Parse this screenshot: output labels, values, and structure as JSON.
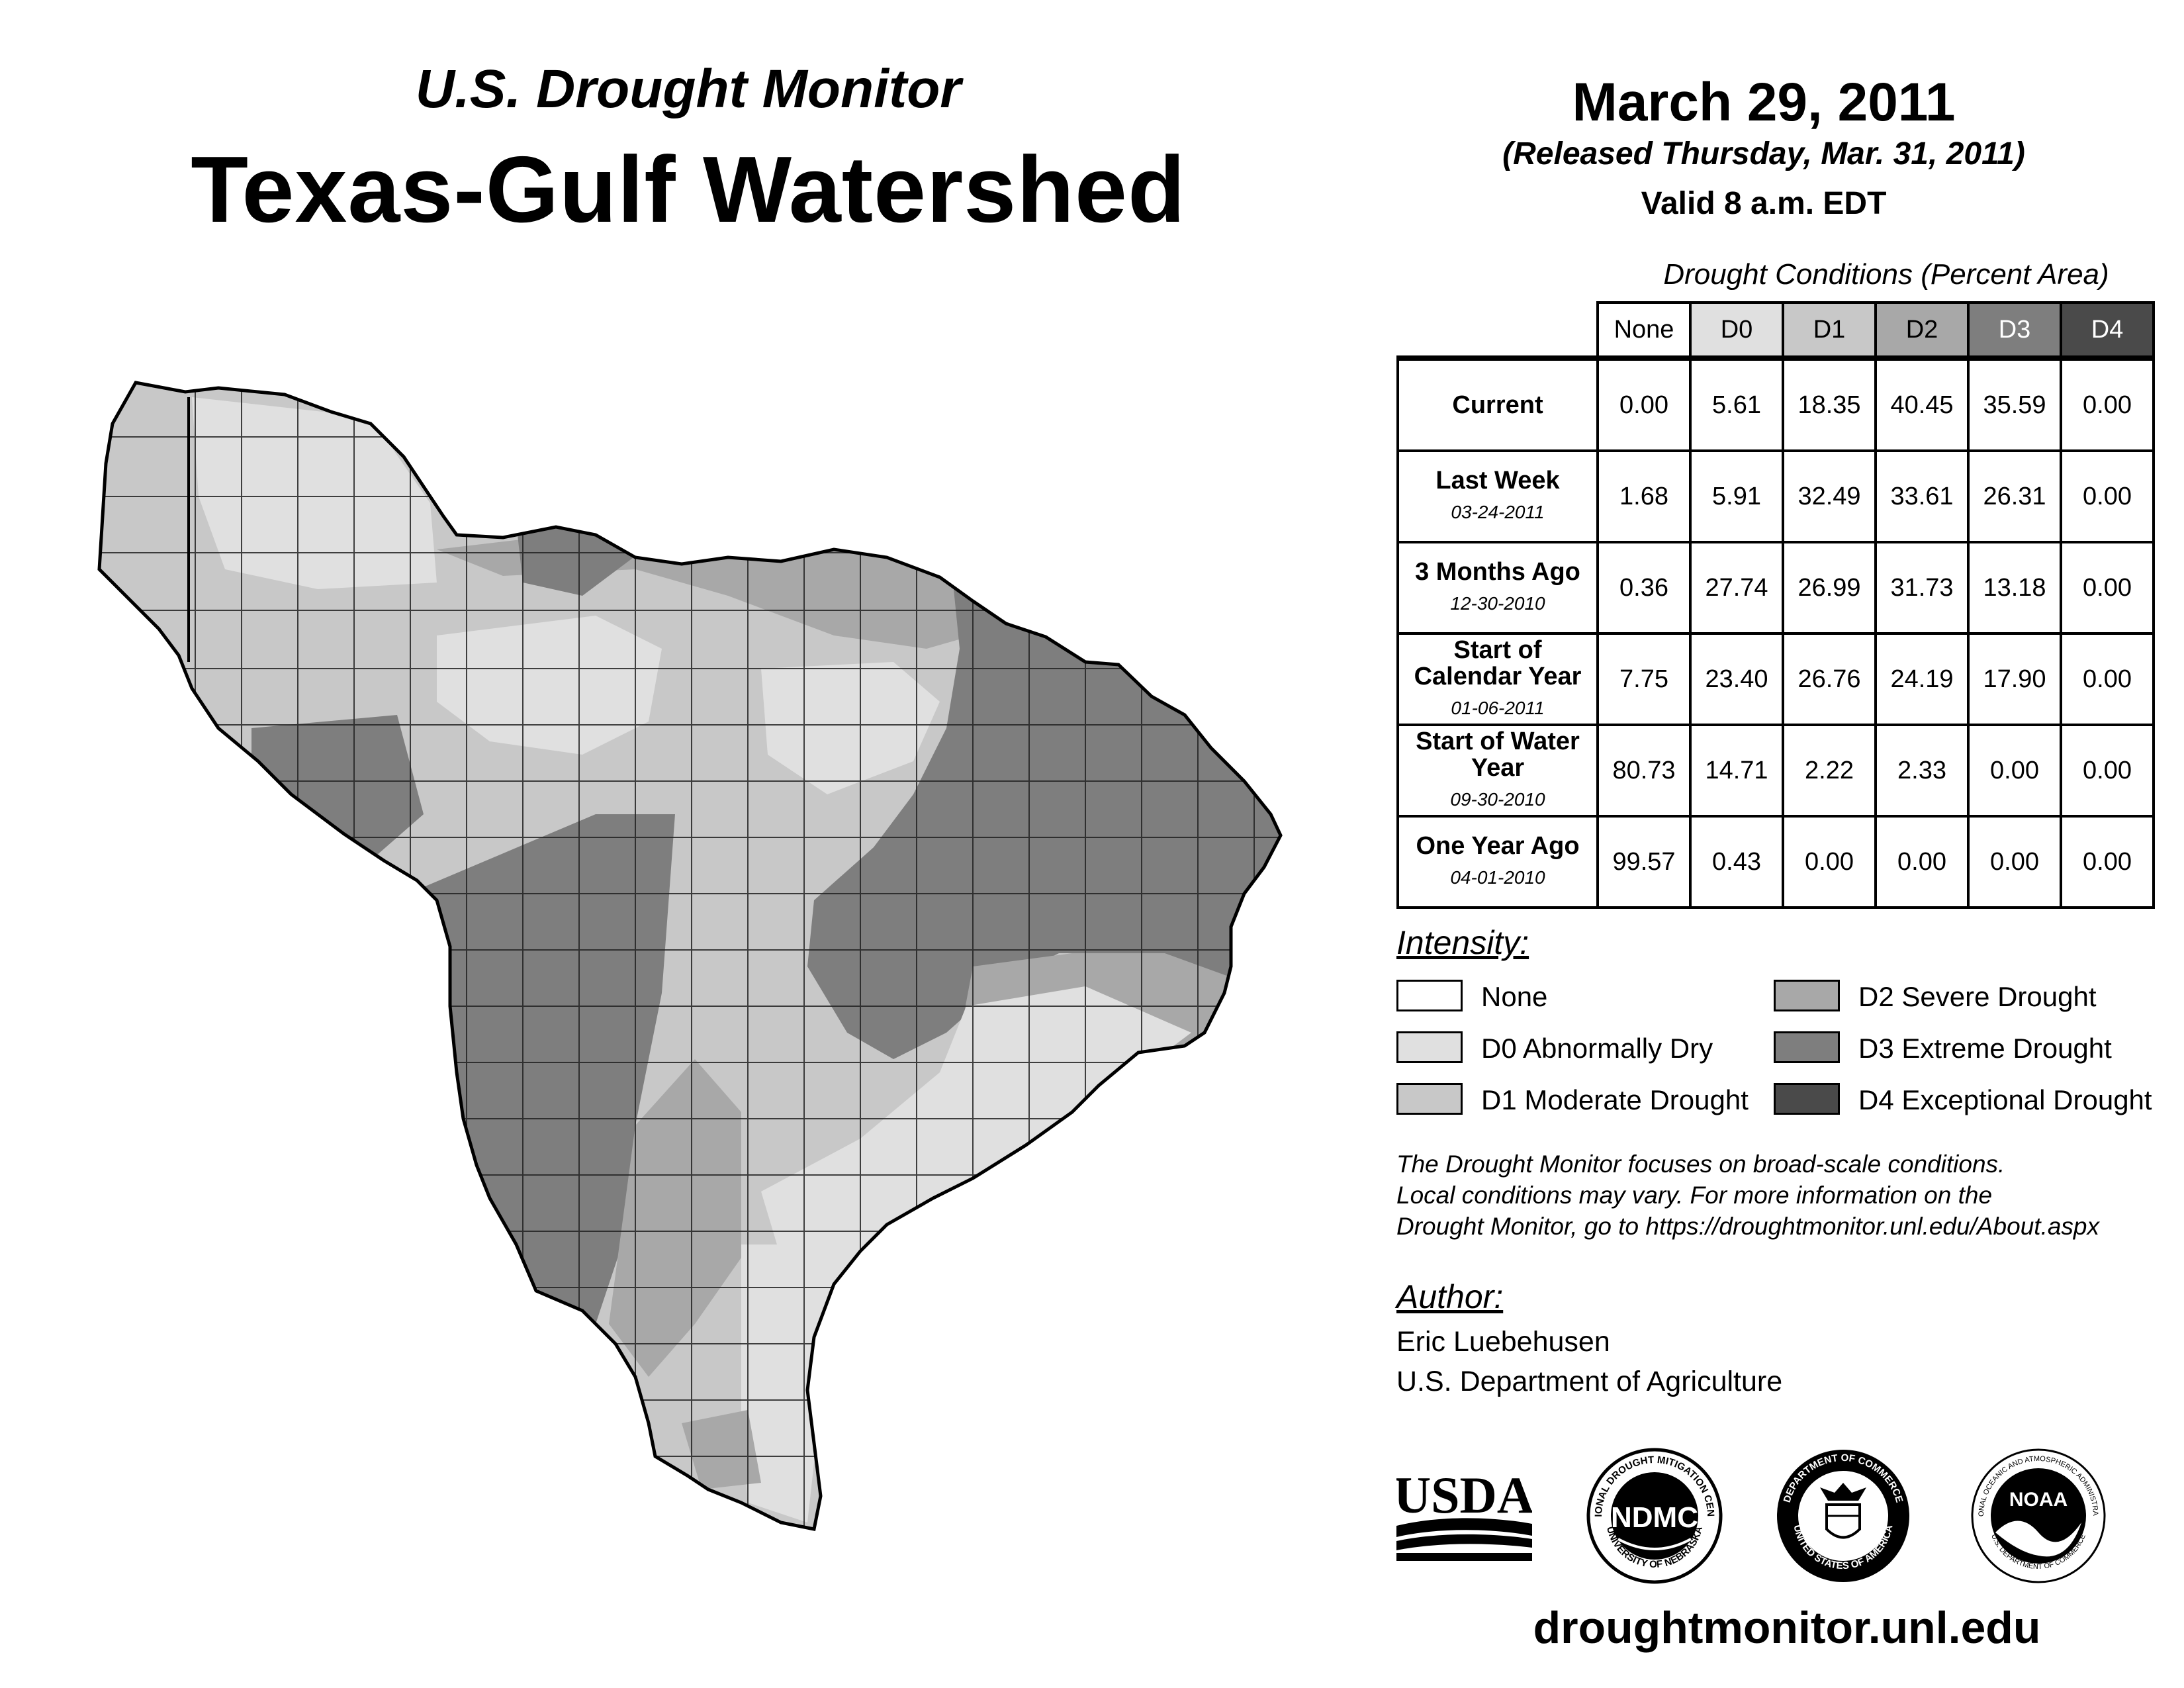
{
  "header": {
    "subtitle": "U.S. Drought Monitor",
    "title": "Texas-Gulf Watershed",
    "date": "March 29, 2011",
    "released": "(Released Thursday, Mar. 31, 2011)",
    "valid": "Valid 8 a.m. EDT"
  },
  "table": {
    "caption": "Drought Conditions (Percent Area)",
    "columns": [
      "None",
      "D0",
      "D1",
      "D2",
      "D3",
      "D4"
    ],
    "column_colors": [
      "#ffffff",
      "#e0e0e0",
      "#c8c8c8",
      "#a8a8a8",
      "#7e7e7e",
      "#4a4a4a"
    ],
    "rows": [
      {
        "label": "Current",
        "date": "",
        "values": [
          "0.00",
          "5.61",
          "18.35",
          "40.45",
          "35.59",
          "0.00"
        ]
      },
      {
        "label": "Last Week",
        "date": "03-24-2011",
        "values": [
          "1.68",
          "5.91",
          "32.49",
          "33.61",
          "26.31",
          "0.00"
        ]
      },
      {
        "label": "3 Months Ago",
        "date": "12-30-2010",
        "values": [
          "0.36",
          "27.74",
          "26.99",
          "31.73",
          "13.18",
          "0.00"
        ]
      },
      {
        "label": "Start of Calendar Year",
        "date": "01-06-2011",
        "values": [
          "7.75",
          "23.40",
          "26.76",
          "24.19",
          "17.90",
          "0.00"
        ]
      },
      {
        "label": "Start of Water Year",
        "date": "09-30-2010",
        "values": [
          "80.73",
          "14.71",
          "2.22",
          "2.33",
          "0.00",
          "0.00"
        ]
      },
      {
        "label": "One Year Ago",
        "date": "04-01-2010",
        "values": [
          "99.57",
          "0.43",
          "0.00",
          "0.00",
          "0.00",
          "0.00"
        ]
      }
    ]
  },
  "legend": {
    "title": "Intensity:",
    "items": [
      {
        "label": "None",
        "color": "#ffffff"
      },
      {
        "label": "D0 Abnormally Dry",
        "color": "#e0e0e0"
      },
      {
        "label": "D1 Moderate Drought",
        "color": "#c8c8c8"
      },
      {
        "label": "D2 Severe Drought",
        "color": "#a8a8a8"
      },
      {
        "label": "D3 Extreme Drought",
        "color": "#7e7e7e"
      },
      {
        "label": "D4 Exceptional Drought",
        "color": "#4a4a4a"
      }
    ]
  },
  "note": {
    "line1": "The Drought Monitor focuses on broad-scale conditions.",
    "line2": "Local conditions may vary. For more information on the",
    "line3": "Drought Monitor, go to https://droughtmonitor.unl.edu/About.aspx"
  },
  "author": {
    "title": "Author:",
    "name": "Eric Luebehusen",
    "org": "U.S. Department of Agriculture"
  },
  "logos": {
    "usda": "USDA",
    "ndmc": "NDMC",
    "ndmc_ring_top": "NATIONAL DROUGHT MITIGATION CENTER",
    "ndmc_ring_bottom": "UNIVERSITY OF NEBRASKA",
    "doc_ring_top": "DEPARTMENT OF COMMERCE",
    "doc_ring_bottom": "UNITED STATES OF AMERICA",
    "noaa": "NOAA",
    "noaa_ring_top": "NATIONAL OCEANIC AND ATMOSPHERIC ADMINISTRATION",
    "noaa_ring_bottom": "U.S. DEPARTMENT OF COMMERCE"
  },
  "footer": {
    "url": "droughtmonitor.unl.edu"
  }
}
